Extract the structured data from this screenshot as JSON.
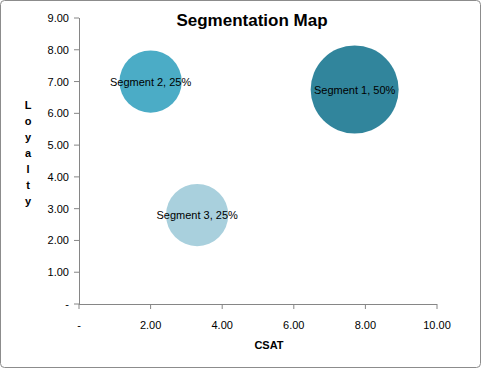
{
  "chart_data": {
    "type": "bubble",
    "title": "Segmentation Map",
    "x_label": "CSAT",
    "y_label": "Loyalty",
    "series": [
      {
        "x": [
          7.7,
          2.0,
          3.3
        ],
        "values": [
          6.75,
          7.0,
          2.8
        ],
        "size": [
          50,
          25,
          25
        ],
        "size_labels": [
          "Segment 1, 50%",
          "Segment 2, 25%",
          "Segment 3, 25%"
        ],
        "colors": [
          "#31859c",
          "#4bacc6",
          "#a9d0dd"
        ]
      }
    ],
    "xlim": [
      0,
      10
    ],
    "xticks": [
      {
        "value": 0,
        "label": "-"
      },
      {
        "value": 2,
        "label": "2.00"
      },
      {
        "value": 4,
        "label": "4.00"
      },
      {
        "value": 6,
        "label": "6.00"
      },
      {
        "value": 8,
        "label": "8.00"
      },
      {
        "value": 10,
        "label": "10.00"
      }
    ],
    "ylim": [
      0,
      9
    ],
    "yticks": [
      {
        "value": 0,
        "label": "-"
      },
      {
        "value": 1,
        "label": "1.00"
      },
      {
        "value": 2,
        "label": "2.00"
      },
      {
        "value": 3,
        "label": "3.00"
      },
      {
        "value": 4,
        "label": "4.00"
      },
      {
        "value": 5,
        "label": "5.00"
      },
      {
        "value": 6,
        "label": "6.00"
      },
      {
        "value": 7,
        "label": "7.00"
      },
      {
        "value": 8,
        "label": "8.00"
      },
      {
        "value": 9,
        "label": "9.00"
      }
    ],
    "grid": false,
    "data_labels": true
  }
}
